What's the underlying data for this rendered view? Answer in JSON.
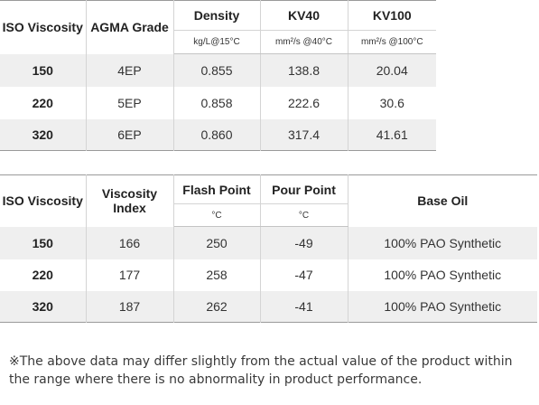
{
  "table1": {
    "headers": {
      "iso": "ISO Viscosity",
      "agma": "AGMA Grade",
      "density": "Density",
      "density_unit": "kg/L@15°C",
      "kv40": "KV40",
      "kv40_unit": "mm²/s @40°C",
      "kv100": "KV100",
      "kv100_unit": "mm²/s @100°C"
    },
    "rows": [
      {
        "iso": "150",
        "agma": "4EP",
        "density": "0.855",
        "kv40": "138.8",
        "kv100": "20.04"
      },
      {
        "iso": "220",
        "agma": "5EP",
        "density": "0.858",
        "kv40": "222.6",
        "kv100": "30.6"
      },
      {
        "iso": "320",
        "agma": "6EP",
        "density": "0.860",
        "kv40": "317.4",
        "kv100": "41.61"
      }
    ]
  },
  "table2": {
    "headers": {
      "iso": "ISO Viscosity",
      "vi": "Viscosity Index",
      "flash": "Flash Point",
      "flash_unit": "°C",
      "pour": "Pour Point",
      "pour_unit": "°C",
      "base": "Base Oil"
    },
    "rows": [
      {
        "iso": "150",
        "vi": "166",
        "flash": "250",
        "pour": "-49",
        "base": "100% PAO Synthetic"
      },
      {
        "iso": "220",
        "vi": "177",
        "flash": "258",
        "pour": "-47",
        "base": "100% PAO Synthetic"
      },
      {
        "iso": "320",
        "vi": "187",
        "flash": "262",
        "pour": "-41",
        "base": "100% PAO Synthetic"
      }
    ]
  },
  "note": "※The above data may differ slightly from the actual value of the product within the range where there is no abnormality in product performance."
}
